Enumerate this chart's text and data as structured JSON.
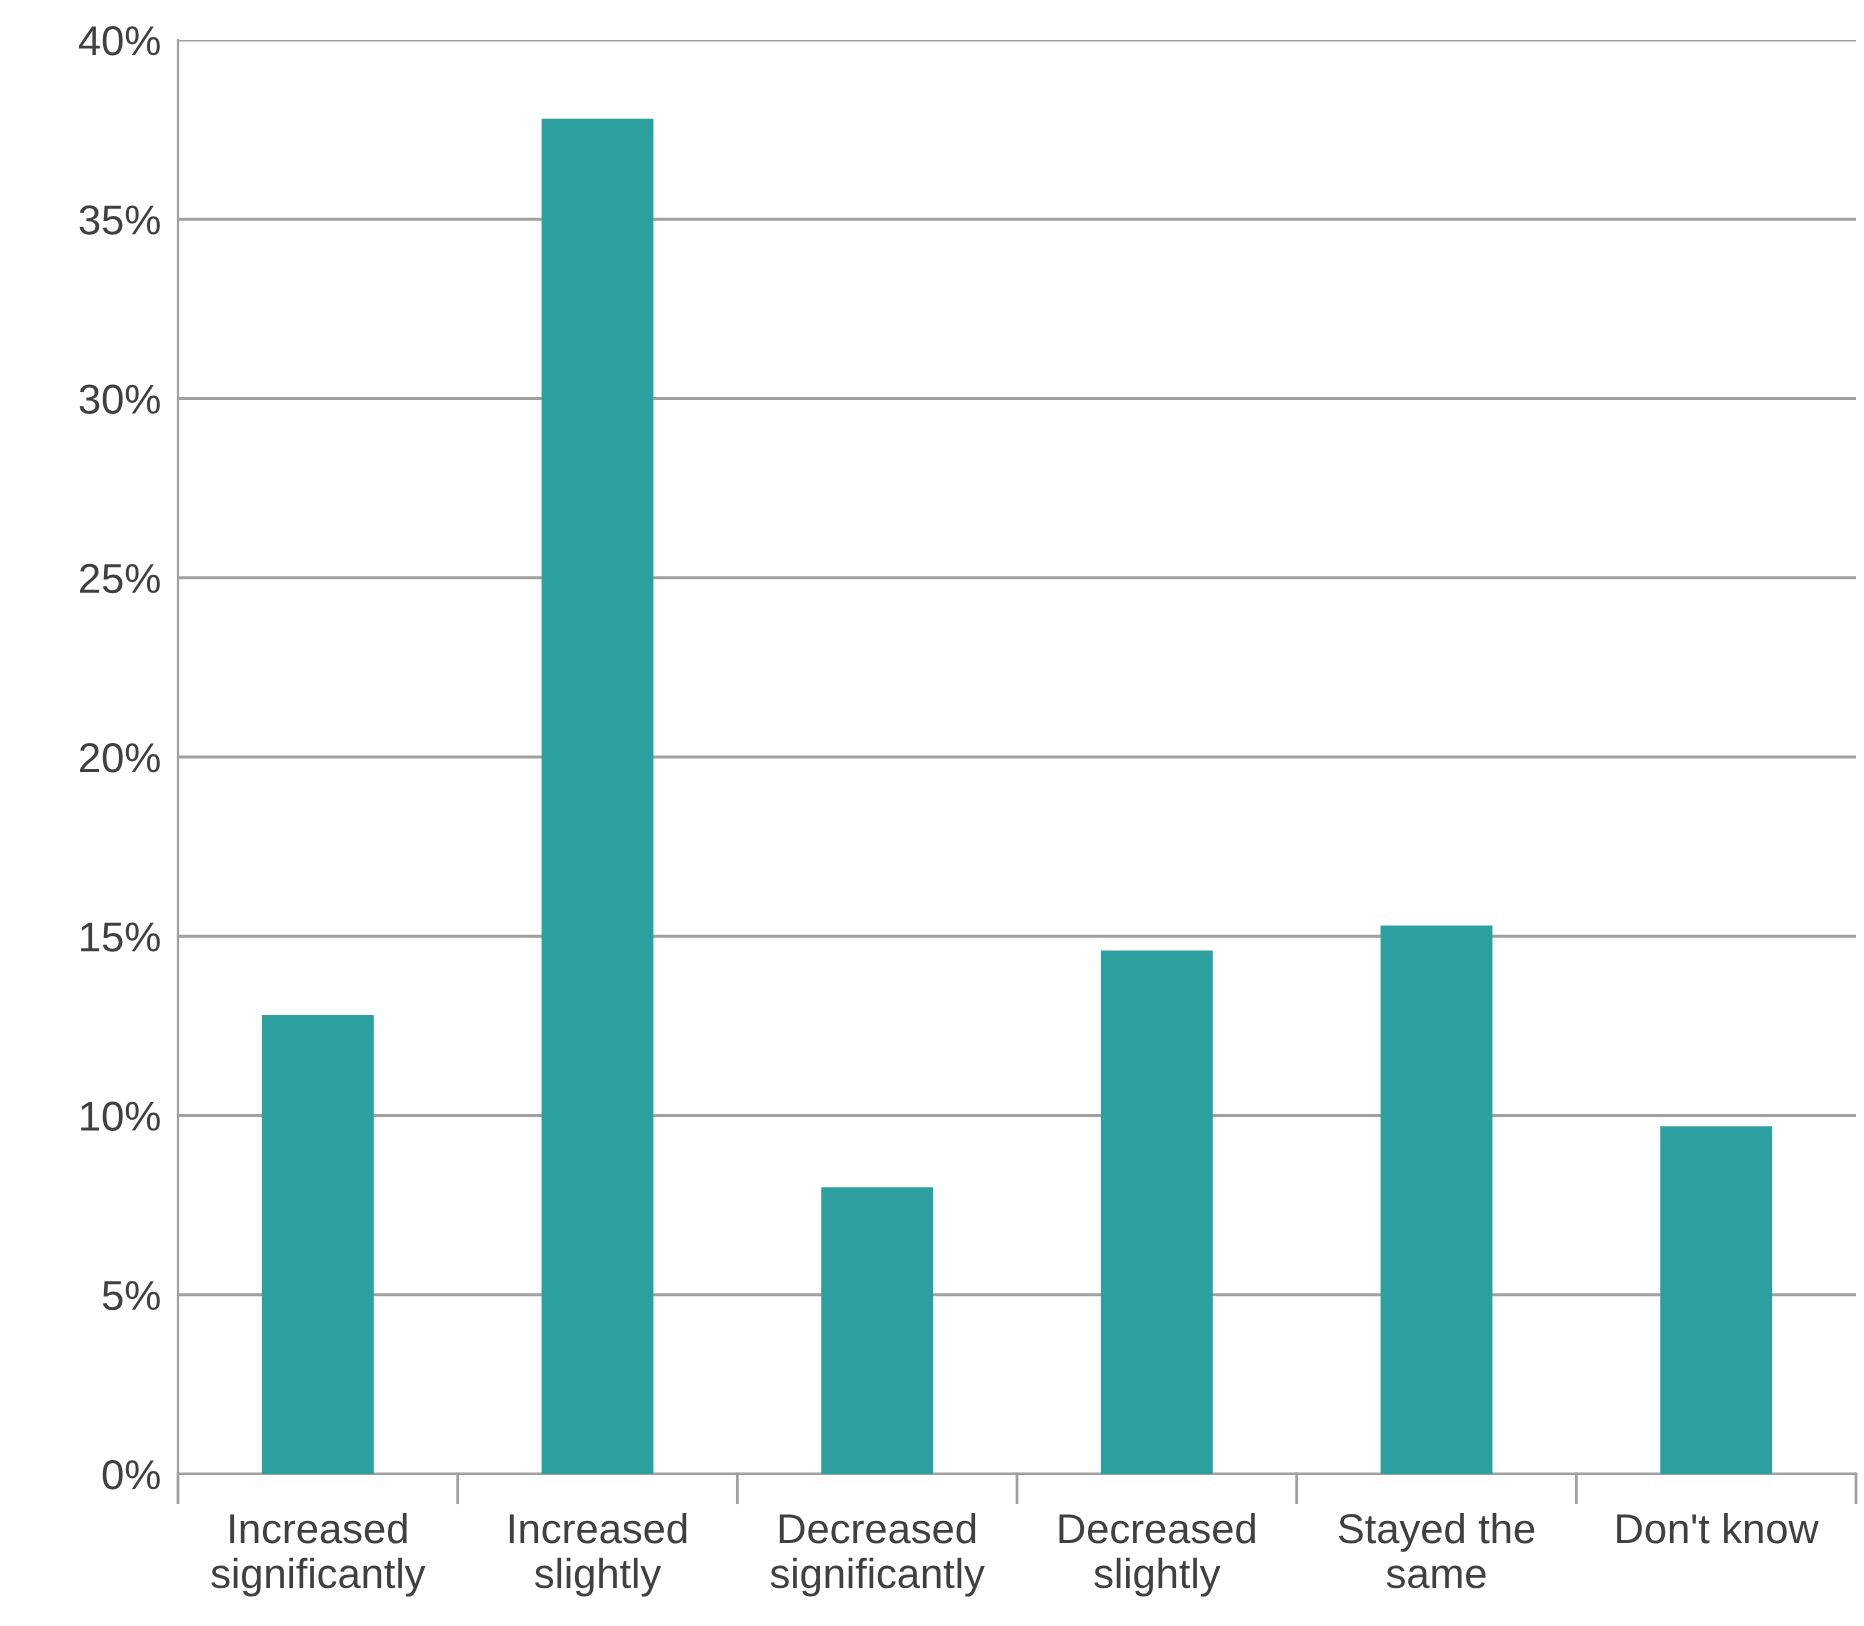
{
  "chart_data": {
    "type": "bar",
    "categories": [
      "Increased\nsignificantly",
      "Increased\nslightly",
      "Decreased\nsignificantly",
      "Decreased\nslightly",
      "Stayed the\nsame",
      "Don't know"
    ],
    "values": [
      12.8,
      37.8,
      8.0,
      14.6,
      15.3,
      9.7
    ],
    "color": "#2ca09f",
    "ylim": [
      0,
      40
    ],
    "yticks": [
      {
        "value": 0,
        "label": "0%"
      },
      {
        "value": 5,
        "label": "5%"
      },
      {
        "value": 10,
        "label": "10%"
      },
      {
        "value": 15,
        "label": "15%"
      },
      {
        "value": 20,
        "label": "20%"
      },
      {
        "value": 25,
        "label": "25%"
      },
      {
        "value": 30,
        "label": "30%"
      },
      {
        "value": 35,
        "label": "35%"
      },
      {
        "value": 40,
        "label": "40%"
      }
    ],
    "grid": "y"
  }
}
